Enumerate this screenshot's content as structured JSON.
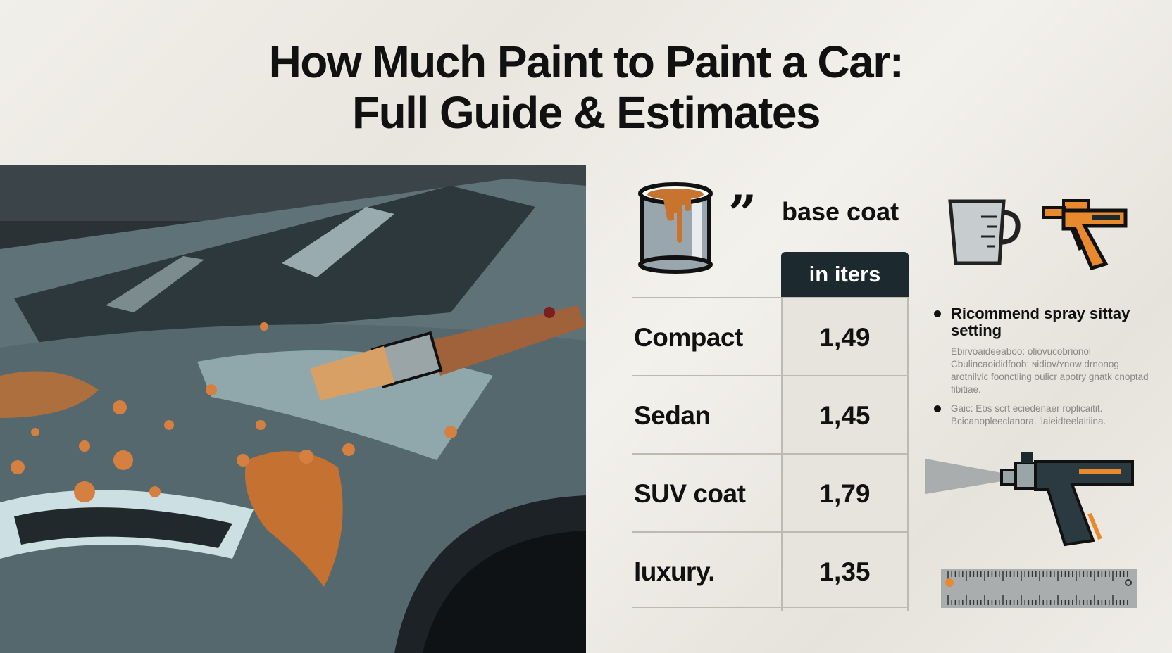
{
  "title": {
    "line1": "How Much Paint to Paint a Car:",
    "line2": "Full Guide & Estimates"
  },
  "icons": [
    "paint-can-icon",
    "quote-icon",
    "measuring-cup-icon",
    "spray-gun-icon",
    "spray-gun-icon",
    "ruler-icon",
    "paint-brush-icon"
  ],
  "colors": {
    "accent": "#d07a35",
    "dark": "#1c2a30",
    "car": "#55676d"
  },
  "section": {
    "label": "base coat"
  },
  "table": {
    "header": "in iters",
    "rows": [
      {
        "name": "Compact",
        "value": "1,49"
      },
      {
        "name": "Sedan",
        "value": "1,45"
      },
      {
        "name": "SUV coat",
        "value": "1,79"
      },
      {
        "name": "luxury.",
        "value": "1,35"
      }
    ]
  },
  "tips": [
    {
      "heading": "Ricommend spray sittay setting",
      "body": "Ebirvoaideeaboo: oliovucobrionol Cbulincaoididfoob: ɴidiov/ʏnow drnonog arotnilvic foonctiing oulicr apotry gnatk cnoptad fibitiae."
    },
    {
      "heading": "",
      "body": "Gaic: Ebs scrt ecieɗenaer roplicaitit. Bcicanopleeclanora. 'iaieidteelaitiina."
    }
  ]
}
